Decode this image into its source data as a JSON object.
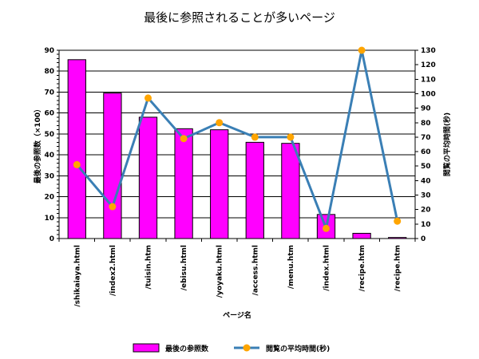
{
  "chart_data": {
    "type": "bar",
    "title": "最後に参照されることが多いページ",
    "xlabel": "ページ名",
    "ylabel_left": "最後の参照数（×100）",
    "ylabel_right": "閲覧の平均時間(秒)",
    "categories": [
      "/shikaiaya.html",
      "/index2.html",
      "/tuisin.htm",
      "/ebisu.html",
      "/yoyaku.html",
      "/access.html",
      "/menu.htm",
      "/index.html",
      "/recipe.htm",
      "/recipe.htm"
    ],
    "left_axis": {
      "min": 0,
      "max": 90,
      "step": 10,
      "ticks": [
        "0",
        "10",
        "20",
        "30",
        "40",
        "50",
        "60",
        "70",
        "80",
        "90"
      ]
    },
    "right_axis": {
      "min": 0,
      "max": 130,
      "step": 10,
      "ticks": [
        "0",
        "10",
        "20",
        "30",
        "40",
        "50",
        "60",
        "70",
        "80",
        "90",
        "100",
        "110",
        "120",
        "130"
      ]
    },
    "series": [
      {
        "name": "最後の参照数",
        "type": "bar",
        "axis": "left",
        "color": "#ff00ff",
        "values": [
          85.5,
          69.5,
          58,
          52.5,
          52,
          46,
          45.5,
          11.5,
          2.5,
          0.5
        ]
      },
      {
        "name": "閲覧の平均時間(秒)",
        "type": "line",
        "axis": "right",
        "color": "#3a7fb5",
        "marker_color": "#ffa500",
        "values": [
          51,
          22,
          97,
          69,
          80,
          70,
          70,
          7,
          130,
          12
        ]
      }
    ],
    "legend_position": "bottom"
  }
}
